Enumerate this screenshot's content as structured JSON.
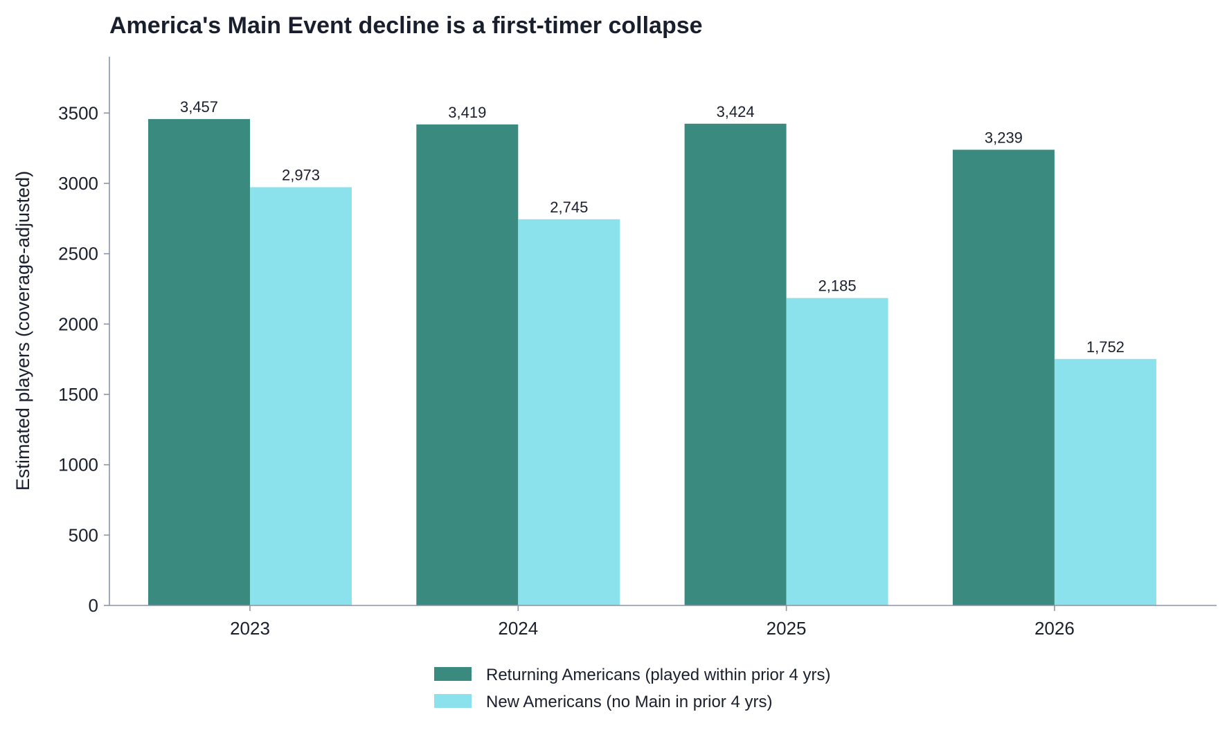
{
  "chart_data": {
    "type": "bar",
    "title": "America's Main Event decline is a first-timer collapse",
    "xlabel": "",
    "ylabel": "Estimated players (coverage-adjusted)",
    "categories": [
      "2023",
      "2024",
      "2025",
      "2026"
    ],
    "series": [
      {
        "name": "Returning Americans (played within prior 4 yrs)",
        "color": "#3a8a7f",
        "values": [
          3457,
          3419,
          3424,
          3239
        ],
        "labels": [
          "3,457",
          "3,419",
          "3,424",
          "3,239"
        ]
      },
      {
        "name": "New Americans (no Main in prior 4 yrs)",
        "color": "#8ce2ec",
        "values": [
          2973,
          2745,
          2185,
          1752
        ],
        "labels": [
          "2,973",
          "2,745",
          "2,185",
          "1,752"
        ]
      }
    ],
    "ylim": [
      0,
      3900
    ],
    "yticks": [
      0,
      500,
      1000,
      1500,
      2000,
      2500,
      3000,
      3500
    ],
    "ytick_labels": [
      "0",
      "500",
      "1000",
      "1500",
      "2000",
      "2500",
      "3000",
      "3500"
    ],
    "grid": false,
    "legend_position": "bottom-center"
  }
}
